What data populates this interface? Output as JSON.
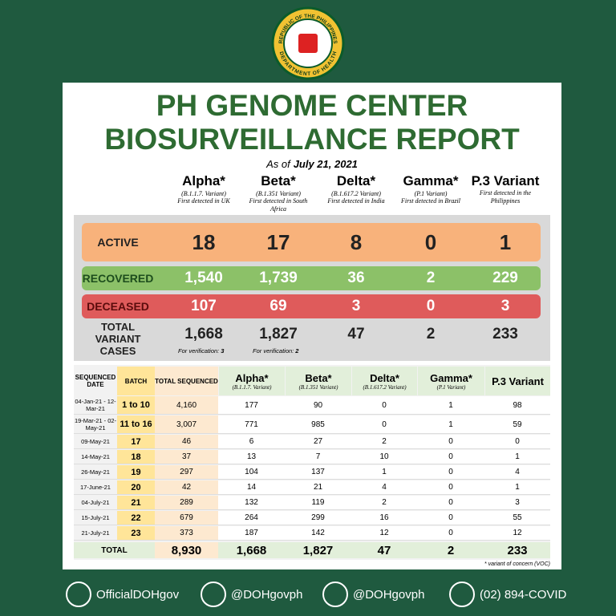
{
  "logo": {
    "top": "REPUBLIC OF THE PHILIPPINES",
    "bottom": "DEPARTMENT OF HEALTH"
  },
  "header": {
    "title_line1": "PH GENOME CENTER",
    "title_line2": "BIOSURVEILLANCE REPORT",
    "as_of_label": "As of",
    "as_of_date": "July 21, 2021"
  },
  "variants": [
    {
      "name": "Alpha*",
      "code": "(B.1.1.7. Variant)",
      "origin": "First detected in UK"
    },
    {
      "name": "Beta*",
      "code": "(B.1.351 Variant)",
      "origin": "First detected in South Africa"
    },
    {
      "name": "Delta*",
      "code": "(B.1.617.2 Variant)",
      "origin": "First detected in India"
    },
    {
      "name": "Gamma*",
      "code": "(P.1 Variant)",
      "origin": "First detected in Brazil"
    },
    {
      "name": "P.3 Variant",
      "origin": "First detected in the Philippines"
    }
  ],
  "summary": {
    "active": {
      "label": "ACTIVE",
      "values": [
        "18",
        "17",
        "8",
        "0",
        "1"
      ]
    },
    "recovered": {
      "label": "RECOVERED",
      "values": [
        "1,540",
        "1,739",
        "36",
        "2",
        "229"
      ]
    },
    "deceased": {
      "label": "DECEASED",
      "values": [
        "107",
        "69",
        "3",
        "0",
        "3"
      ]
    },
    "total": {
      "label": "TOTAL VARIANT CASES",
      "values": [
        "1,668",
        "1,827",
        "47",
        "2",
        "233"
      ],
      "verification": [
        {
          "label": "For verification:",
          "value": "3"
        },
        {
          "label": "For verification:",
          "value": "2"
        }
      ]
    }
  },
  "table": {
    "headers": [
      "SEQUENCED DATE",
      "BATCH",
      "TOTAL SEQUENCED"
    ],
    "rows": [
      [
        "04-Jan-21 - 12-Mar-21",
        "1 to 10",
        "4,160",
        "177",
        "90",
        "0",
        "1",
        "98"
      ],
      [
        "19-Mar-21 - 02-May-21",
        "11 to 16",
        "3,007",
        "771",
        "985",
        "0",
        "1",
        "59"
      ],
      [
        "09-May-21",
        "17",
        "46",
        "6",
        "27",
        "2",
        "0",
        "0"
      ],
      [
        "14-May-21",
        "18",
        "37",
        "13",
        "7",
        "10",
        "0",
        "1"
      ],
      [
        "26-May-21",
        "19",
        "297",
        "104",
        "137",
        "1",
        "0",
        "4"
      ],
      [
        "17-June-21",
        "20",
        "42",
        "14",
        "21",
        "4",
        "0",
        "1"
      ],
      [
        "04-July-21",
        "21",
        "289",
        "132",
        "119",
        "2",
        "0",
        "3"
      ],
      [
        "15-July-21",
        "22",
        "679",
        "264",
        "299",
        "16",
        "0",
        "55"
      ],
      [
        "21-July-21",
        "23",
        "373",
        "187",
        "142",
        "12",
        "0",
        "12"
      ]
    ],
    "total_row": [
      "TOTAL",
      "8,930",
      "1,668",
      "1,827",
      "47",
      "2",
      "233"
    ],
    "footnote": "* variant of concern (VOC)"
  },
  "footer": [
    "OfficialDOHgov",
    "@DOHgovph",
    "@DOHgovph",
    "(02) 894-COVID"
  ]
}
